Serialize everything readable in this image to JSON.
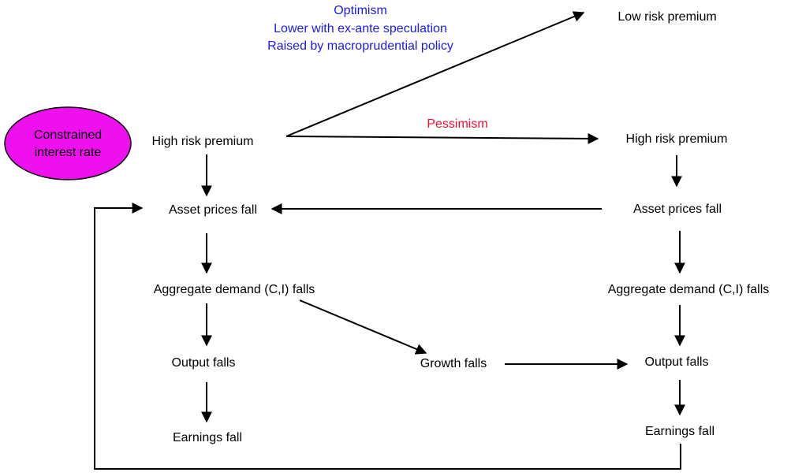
{
  "nodes": [
    {
      "label": "Constrained interest rate"
    },
    {
      "label": "High risk premium"
    },
    {
      "label": "Asset prices fall"
    },
    {
      "label": "Aggregate demand (C,I) falls"
    },
    {
      "label": "Output falls"
    },
    {
      "label": "Earnings fall"
    },
    {
      "label": "Low risk premium"
    },
    {
      "label": "High risk premium"
    },
    {
      "label": "Asset prices fall"
    },
    {
      "label": "Aggregate demand (C,I) falls"
    },
    {
      "label": "Output falls"
    },
    {
      "label": "Earnings fall"
    },
    {
      "label": "Growth falls"
    }
  ],
  "annotations": {
    "optimism": [
      "Optimism",
      "Lower with ex-ante speculation",
      "Raised by macroprudential policy"
    ],
    "pessimism": "Pessimism"
  }
}
